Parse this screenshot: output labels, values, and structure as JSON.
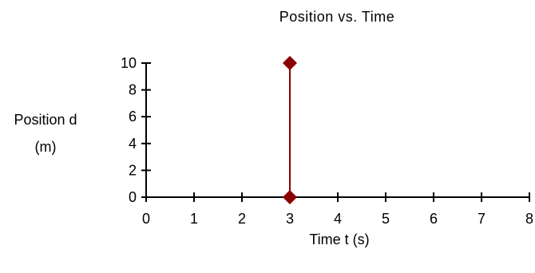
{
  "chart_data": {
    "type": "line",
    "title": "Position vs. Time",
    "ylabel_lines": [
      "Position d",
      "(m)"
    ],
    "xlabel": "Time t (s)",
    "xlim": [
      0,
      8
    ],
    "ylim": [
      0,
      10
    ],
    "x_ticks": [
      "0",
      "1",
      "2",
      "3",
      "4",
      "5",
      "6",
      "7",
      "8"
    ],
    "y_ticks": [
      "0",
      "2",
      "4",
      "6",
      "8",
      "10"
    ],
    "grid": false,
    "legend": "none",
    "series": [
      {
        "x": [
          3,
          3
        ],
        "y": [
          0,
          10
        ],
        "color": "#8b0000",
        "marker": "diamond"
      }
    ]
  }
}
